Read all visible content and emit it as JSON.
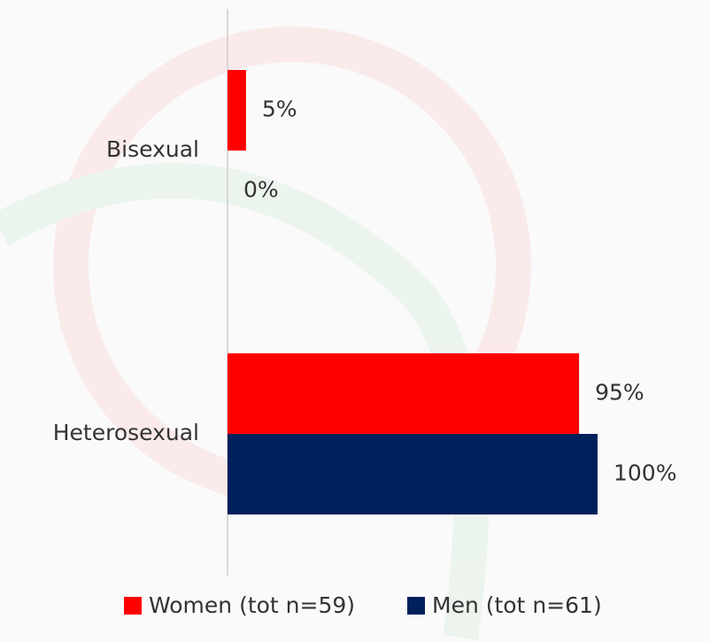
{
  "chart_data": {
    "type": "bar",
    "orientation": "horizontal",
    "categories": [
      "Bisexual",
      "Heterosexual"
    ],
    "series": [
      {
        "name": "Women (tot n=59)",
        "color": "#ff0000",
        "values": [
          5,
          95
        ],
        "value_labels": [
          "5%",
          "95%"
        ]
      },
      {
        "name": "Men (tot n=61)",
        "color": "#00205b",
        "values": [
          0,
          100
        ],
        "value_labels": [
          "0%",
          "100%"
        ]
      }
    ]
  }
}
